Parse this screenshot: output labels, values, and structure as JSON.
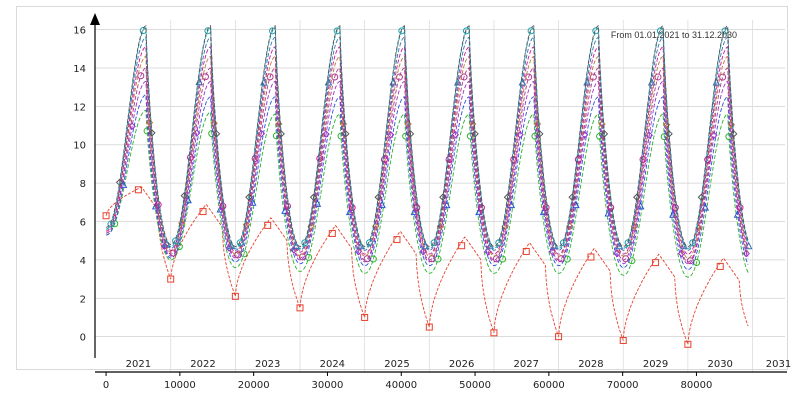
{
  "chart_data": {
    "type": "line",
    "subtitle": "From 01.01.2021 to 31.12.2030",
    "x_axis": {
      "range": [
        -1500,
        92000
      ],
      "ticks": [
        0,
        10000,
        20000,
        30000,
        40000,
        50000,
        60000,
        70000,
        80000
      ],
      "tick_labels": [
        "0",
        "10000",
        "20000",
        "30000",
        "40000",
        "50000",
        "60000",
        "70000",
        "80000"
      ],
      "year_labels": [
        "2021",
        "2022",
        "2023",
        "2024",
        "2025",
        "2026",
        "2027",
        "2028",
        "2029",
        "2030",
        "2031"
      ],
      "year_start_x": 0,
      "year_span_x": 8760
    },
    "y_axis": {
      "range": [
        -0.8,
        16.5
      ],
      "ticks": [
        0,
        2,
        4,
        6,
        8,
        10,
        12,
        14,
        16
      ]
    },
    "grid": true,
    "marker_spacing_x": 8760,
    "series": [
      {
        "color": "#e8412e",
        "marker": "square",
        "t0": 6.3,
        "peaks": [
          7.8,
          6.9,
          6.2,
          5.8,
          5.5,
          5.2,
          4.9,
          4.6,
          4.3,
          4.1
        ],
        "troughs": [
          3.0,
          2.1,
          1.5,
          1.0,
          0.5,
          0.2,
          0.0,
          -0.2,
          -0.4,
          0.0
        ]
      },
      {
        "color": "#2bb32b",
        "marker": "circle",
        "t0": 5.3,
        "peaks": [
          11.8,
          11.7,
          11.6,
          11.6,
          11.6,
          11.6,
          11.6,
          11.6,
          11.6,
          11.6
        ],
        "troughs": [
          4.0,
          3.6,
          3.4,
          3.3,
          3.3,
          3.3,
          3.3,
          3.2,
          3.1,
          3.1
        ]
      },
      {
        "color": "#2a52d9",
        "marker": "triangle",
        "t0": 5.3,
        "peaks": [
          12.6,
          12.5,
          12.5,
          12.5,
          12.5,
          12.5,
          12.5,
          12.5,
          12.5,
          12.5
        ],
        "troughs": [
          4.1,
          3.9,
          3.8,
          3.7,
          3.7,
          3.7,
          3.7,
          3.6,
          3.5,
          3.5
        ]
      },
      {
        "color": "#9933cc",
        "marker": "diamond",
        "t0": 5.4,
        "peaks": [
          13.3,
          13.3,
          13.3,
          13.3,
          13.3,
          13.3,
          13.3,
          13.3,
          13.3,
          13.3
        ],
        "troughs": [
          4.2,
          4.1,
          4.0,
          3.9,
          3.9,
          3.9,
          3.9,
          3.8,
          3.8,
          3.8
        ]
      },
      {
        "color": "#b03a8e",
        "marker": "circle",
        "t0": 5.4,
        "peaks": [
          14.0,
          14.0,
          14.0,
          14.0,
          14.0,
          14.0,
          14.0,
          14.0,
          14.0,
          14.0
        ],
        "troughs": [
          4.3,
          4.2,
          4.1,
          4.0,
          4.0,
          4.0,
          4.0,
          4.0,
          3.9,
          3.9
        ]
      },
      {
        "color": "#b87a3c",
        "marker": "diamond",
        "t0": 5.5,
        "peaks": [
          14.6,
          14.6,
          14.6,
          14.6,
          14.6,
          14.6,
          14.6,
          14.6,
          14.6,
          14.6
        ],
        "troughs": [
          4.4,
          4.3,
          4.2,
          4.2,
          4.2,
          4.2,
          4.2,
          4.2,
          4.1,
          4.1
        ]
      },
      {
        "color": "#c9199b",
        "marker": "circle",
        "t0": 5.5,
        "peaks": [
          15.1,
          15.1,
          15.1,
          15.1,
          15.1,
          15.1,
          15.1,
          15.1,
          15.1,
          15.1
        ],
        "troughs": [
          4.5,
          4.4,
          4.4,
          4.3,
          4.3,
          4.3,
          4.3,
          4.3,
          4.3,
          4.3
        ]
      },
      {
        "color": "#3d6fb0",
        "marker": "triangle",
        "t0": 5.6,
        "peaks": [
          15.6,
          15.6,
          15.6,
          15.6,
          15.6,
          15.6,
          15.6,
          15.6,
          15.6,
          15.6
        ],
        "troughs": [
          4.6,
          4.5,
          4.5,
          4.5,
          4.5,
          4.5,
          4.5,
          4.5,
          4.5,
          4.5
        ]
      },
      {
        "color": "#1a9fae",
        "marker": "circle",
        "t0": 5.6,
        "peaks": [
          16.1,
          16.1,
          16.1,
          16.1,
          16.1,
          16.1,
          16.1,
          16.1,
          16.1,
          16.1
        ],
        "troughs": [
          4.7,
          4.6,
          4.6,
          4.6,
          4.6,
          4.6,
          4.6,
          4.6,
          4.6,
          4.6
        ]
      },
      {
        "color": "#555555",
        "marker": "diamond",
        "t0": 5.7,
        "peaks": [
          16.2,
          16.2,
          16.2,
          16.2,
          16.2,
          16.2,
          16.2,
          16.2,
          16.2,
          16.2
        ],
        "troughs": [
          4.8,
          4.7,
          4.7,
          4.7,
          4.7,
          4.7,
          4.7,
          4.7,
          4.7,
          4.7
        ]
      }
    ]
  }
}
